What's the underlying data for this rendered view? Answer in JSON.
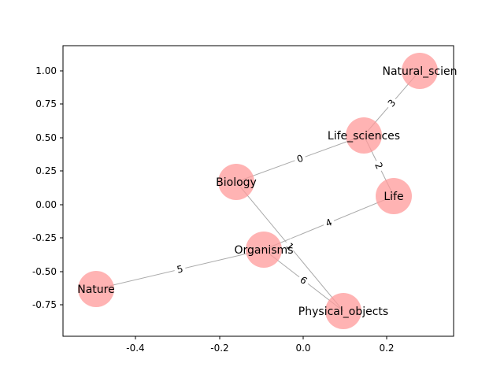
{
  "graph": {
    "node_color": "#ff9999",
    "edge_color": "#aaaaaa",
    "x_ticks": [
      "-0.4",
      "-0.2",
      "0.0",
      "0.2"
    ],
    "y_ticks": [
      "-0.75",
      "-0.50",
      "-0.25",
      "0.00",
      "0.25",
      "0.50",
      "0.75",
      "1.00"
    ],
    "nodes": [
      {
        "id": "natural_science",
        "label": "Natural_scien"
      },
      {
        "id": "life_sciences",
        "label": "Life_sciences"
      },
      {
        "id": "biology",
        "label": "Biology"
      },
      {
        "id": "life",
        "label": "Life"
      },
      {
        "id": "organisms",
        "label": "Organisms"
      },
      {
        "id": "nature",
        "label": "Nature"
      },
      {
        "id": "physical_objects",
        "label": "Physical_objects"
      }
    ],
    "edges": [
      {
        "from": "biology",
        "to": "life_sciences",
        "label": "0"
      },
      {
        "from": "biology",
        "to": "physical_objects",
        "label": "1"
      },
      {
        "from": "life_sciences",
        "to": "life",
        "label": "2"
      },
      {
        "from": "life_sciences",
        "to": "natural_science",
        "label": "3"
      },
      {
        "from": "organisms",
        "to": "life",
        "label": "4"
      },
      {
        "from": "organisms",
        "to": "nature",
        "label": "5"
      },
      {
        "from": "organisms",
        "to": "physical_objects",
        "label": "6"
      }
    ]
  }
}
